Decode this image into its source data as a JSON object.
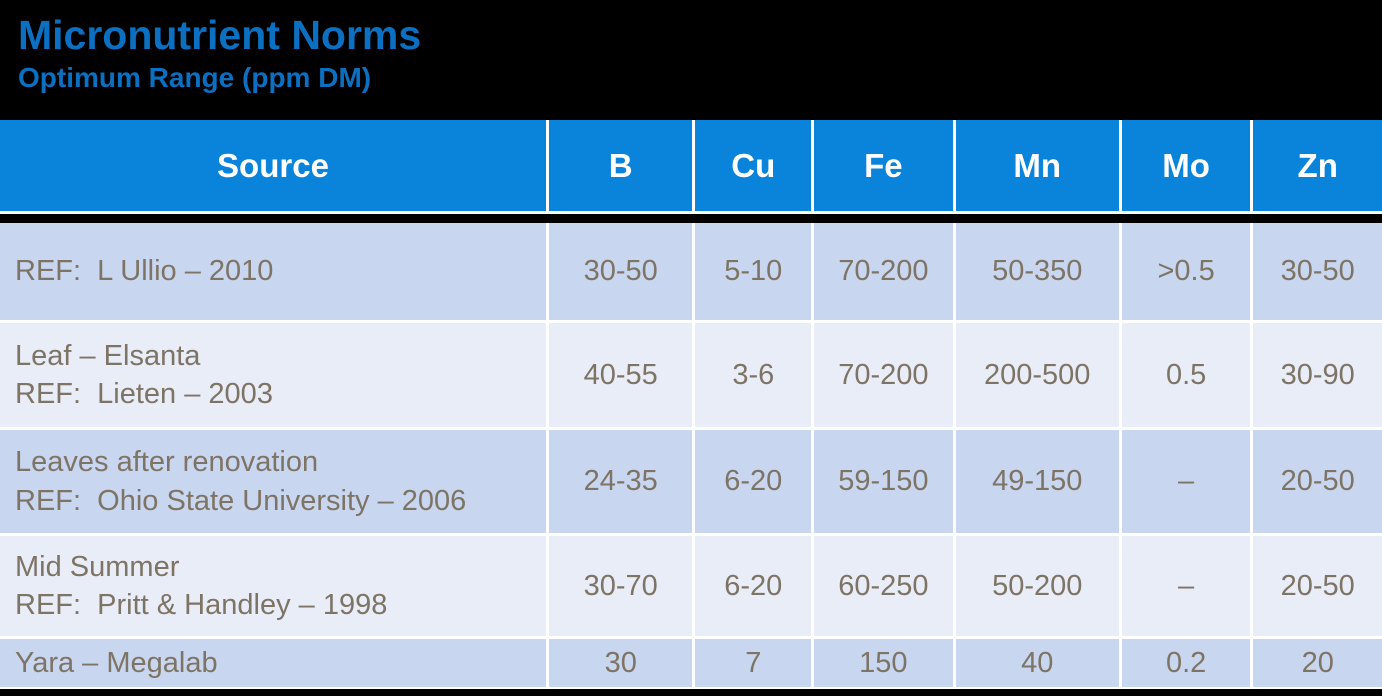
{
  "title": "Micronutrient Norms",
  "subtitle": "Optimum Range (ppm DM)",
  "colors": {
    "background": "#000000",
    "title_text": "#0C70C2",
    "header_bg": "#0A84DB",
    "header_text": "#FFFFFF",
    "row_odd_bg": "#C9D6F0",
    "row_even_bg": "#E9EDF8",
    "body_text": "#7E7465",
    "divider": "#FFFFFF"
  },
  "table": {
    "columns": [
      "Source",
      "B",
      "Cu",
      "Fe",
      "Mn",
      "Mo",
      "Zn"
    ],
    "rows": [
      {
        "source_lines": [
          "REF:  L Ullio – 2010"
        ],
        "values": [
          "30-50",
          "5-10",
          "70-200",
          "50-350",
          ">0.5",
          "30-50"
        ]
      },
      {
        "source_lines": [
          "Leaf – Elsanta",
          "REF:  Lieten – 2003"
        ],
        "values": [
          "40-55",
          "3-6",
          "70-200",
          "200-500",
          "0.5",
          "30-90"
        ]
      },
      {
        "source_lines": [
          "Leaves after renovation",
          "REF:  Ohio State University – 2006"
        ],
        "values": [
          "24-35",
          "6-20",
          "59-150",
          "49-150",
          "–",
          "20-50"
        ]
      },
      {
        "source_lines": [
          "Mid Summer",
          "REF:  Pritt & Handley – 1998"
        ],
        "values": [
          "30-70",
          "6-20",
          "60-250",
          "50-200",
          "–",
          "20-50"
        ]
      },
      {
        "source_lines": [
          "Yara – Megalab"
        ],
        "values": [
          "30",
          "7",
          "150",
          "40",
          "0.2",
          "20"
        ]
      }
    ]
  }
}
